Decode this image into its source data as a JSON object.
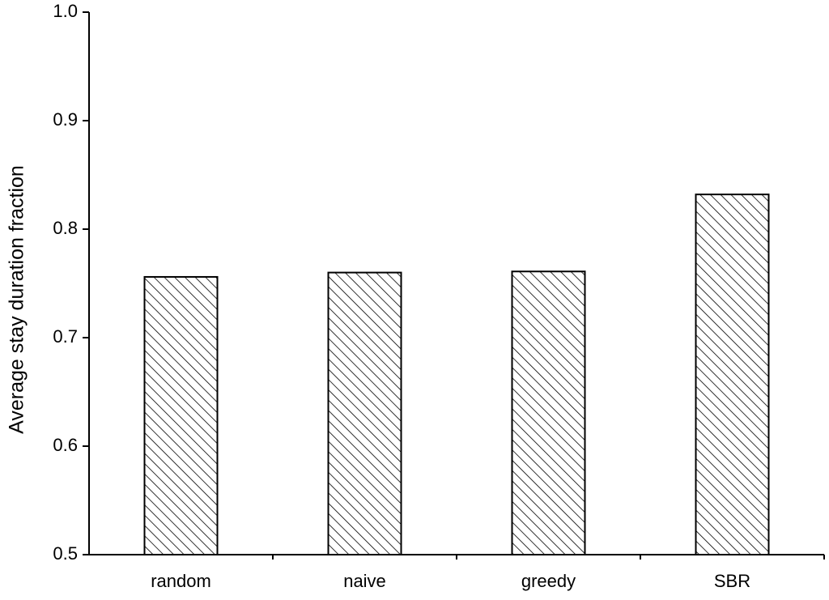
{
  "chart_data": {
    "type": "bar",
    "y_label": "Average stay duration fraction",
    "categories": [
      "random",
      "naive",
      "greedy",
      "SBR"
    ],
    "values": [
      0.756,
      0.76,
      0.761,
      0.832
    ],
    "color": "#000000",
    "ylim": [
      0.5,
      1.0
    ],
    "yticks": [
      0.5,
      0.6,
      0.7,
      0.8,
      0.9,
      {
        "value": 1.0,
        "label": "1.0"
      }
    ],
    "grid": false
  }
}
